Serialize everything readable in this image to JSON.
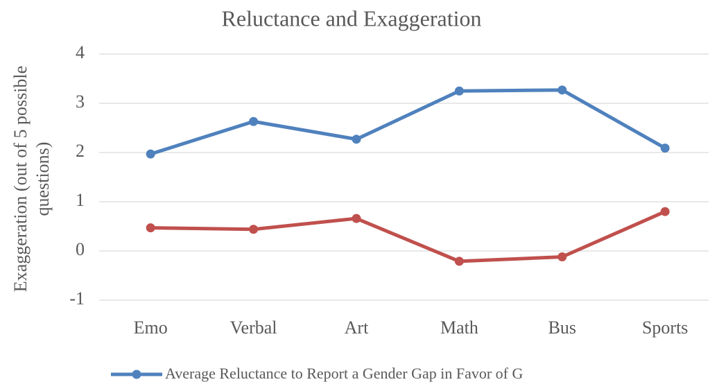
{
  "chart_data": {
    "type": "line",
    "title": "Reluctance and Exaggeration",
    "ylabel": [
      "Exaggeration (out of 5 possible",
      "questions)"
    ],
    "categories": [
      "Emo",
      "Verbal",
      "Art",
      "Math",
      "Bus",
      "Sports"
    ],
    "series": [
      {
        "name": "Average Reluctance to Report a Gender Gap in Favor of G",
        "color": "#4f81bd",
        "values": [
          1.97,
          2.63,
          2.27,
          3.25,
          3.27,
          2.09
        ]
      },
      {
        "color": "#c0504d",
        "values": [
          0.47,
          0.44,
          0.66,
          -0.21,
          -0.12,
          0.8
        ]
      }
    ],
    "ylim": [
      -1,
      4
    ],
    "yticks": [
      -1,
      0,
      1,
      2,
      3,
      4
    ],
    "grid": true,
    "legend": "bottom"
  }
}
